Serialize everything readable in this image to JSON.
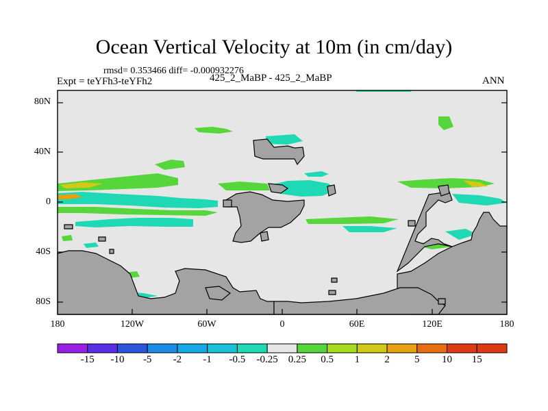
{
  "map": {
    "title": "Ocean Vertical Velocity at 10m (in cm/day)",
    "stats": "rmsd= 0.353466 diff= -0.000932276",
    "experiment": "Expt = teYFh3-teYFh2",
    "case_label": "425_2_MaBP - 425_2_MaBP",
    "season": "ANN",
    "lat_ticks": [
      "80N",
      "40N",
      "0",
      "40S",
      "80S"
    ],
    "lon_ticks": [
      "180",
      "120W",
      "60W",
      "0",
      "60E",
      "120E",
      "180"
    ],
    "colorbar": {
      "labels": [
        "-15",
        "-10",
        "-5",
        "-2",
        "-1",
        "-0.5",
        "-0.25",
        "0.25",
        "0.5",
        "1",
        "2",
        "5",
        "10",
        "15"
      ],
      "colors": [
        "#9a1fe6",
        "#5a2de6",
        "#2c55dc",
        "#1a8ce6",
        "#18a8e6",
        "#17c2d6",
        "#1fd9b4",
        "#e6e6e6",
        "#56d63a",
        "#a6dc1c",
        "#d2c818",
        "#e6a010",
        "#e66e10",
        "#e03a14"
      ]
    },
    "land_color": "#a3a3a3",
    "background_color": "#e6e6e6"
  }
}
